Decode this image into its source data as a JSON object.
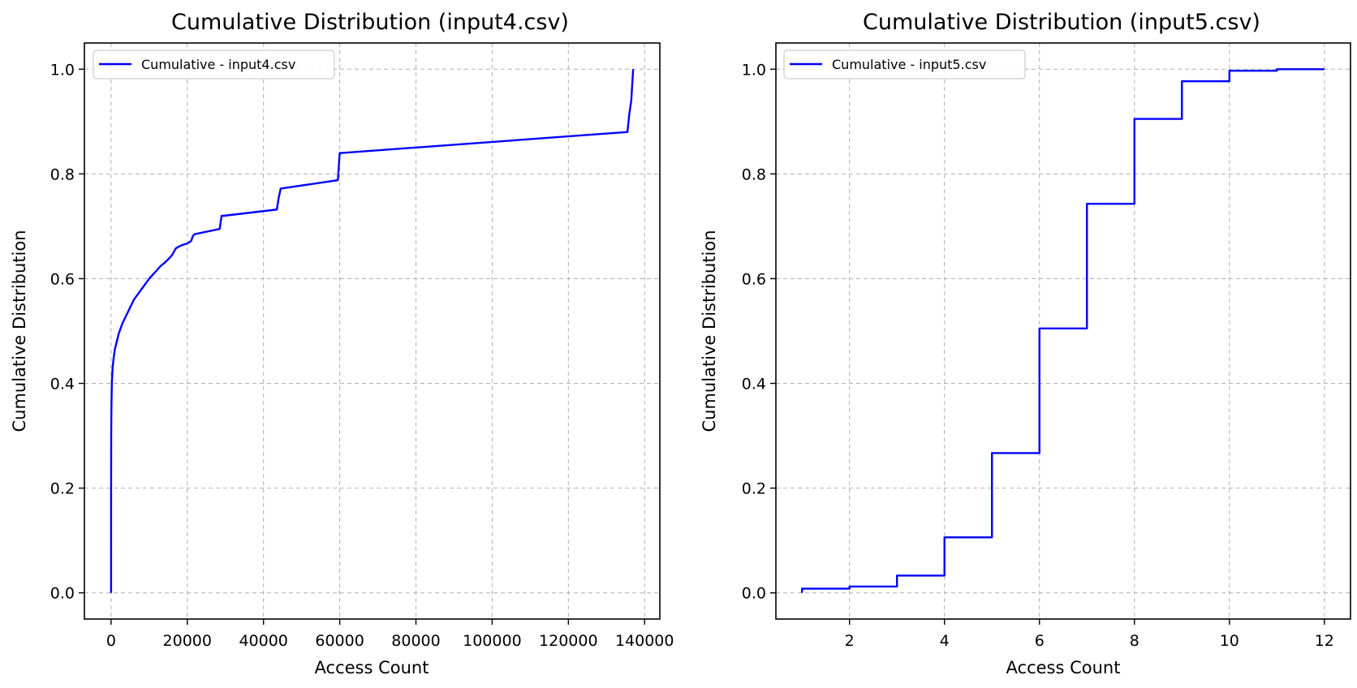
{
  "chart_data": [
    {
      "type": "line",
      "title": "Cumulative Distribution (input4.csv)",
      "xlabel": "Access Count",
      "ylabel": "Cumulative Distribution",
      "xlim": [
        -7000,
        144000
      ],
      "ylim": [
        -0.05,
        1.05
      ],
      "xticks": [
        0,
        20000,
        40000,
        60000,
        80000,
        100000,
        120000,
        140000
      ],
      "yticks": [
        0.0,
        0.2,
        0.4,
        0.6,
        0.8,
        1.0
      ],
      "xtick_labels": [
        "0",
        "20000",
        "40000",
        "60000",
        "80000",
        "100000",
        "120000",
        "140000"
      ],
      "ytick_labels": [
        "0.0",
        "0.2",
        "0.4",
        "0.6",
        "0.8",
        "1.0"
      ],
      "grid": true,
      "legend_position": "top-left",
      "line_color": "#0000ff",
      "series": [
        {
          "name": "Cumulative - input4.csv",
          "x": [
            1,
            10,
            30,
            100,
            200,
            400,
            700,
            1000,
            1500,
            2000,
            3000,
            4000,
            5000,
            6000,
            7000,
            8000,
            9000,
            10000,
            11000,
            12000,
            13000,
            14000,
            15000,
            16000,
            17000,
            18000,
            19000,
            20000,
            21000,
            21500,
            22000,
            28500,
            29000,
            29500,
            43500,
            44000,
            44500,
            59500,
            60000,
            60500,
            135500,
            136000,
            136500,
            137000
          ],
          "y": [
            0.0,
            0.2,
            0.3,
            0.36,
            0.4,
            0.43,
            0.45,
            0.465,
            0.48,
            0.495,
            0.515,
            0.53,
            0.545,
            0.56,
            0.57,
            0.58,
            0.59,
            0.6,
            0.608,
            0.616,
            0.624,
            0.63,
            0.637,
            0.645,
            0.658,
            0.662,
            0.665,
            0.667,
            0.672,
            0.682,
            0.685,
            0.695,
            0.72,
            0.72,
            0.732,
            0.755,
            0.772,
            0.788,
            0.84,
            0.84,
            0.88,
            0.915,
            0.94,
            1.0
          ]
        }
      ]
    },
    {
      "type": "line",
      "title": "Cumulative Distribution (input5.csv)",
      "xlabel": "Access Count",
      "ylabel": "Cumulative Distribution",
      "xlim": [
        0.45,
        12.55
      ],
      "ylim": [
        -0.05,
        1.05
      ],
      "xticks": [
        2,
        4,
        6,
        8,
        10,
        12
      ],
      "yticks": [
        0.0,
        0.2,
        0.4,
        0.6,
        0.8,
        1.0
      ],
      "xtick_labels": [
        "2",
        "4",
        "6",
        "8",
        "10",
        "12"
      ],
      "ytick_labels": [
        "0.0",
        "0.2",
        "0.4",
        "0.6",
        "0.8",
        "1.0"
      ],
      "grid": true,
      "legend_position": "top-left",
      "line_color": "#0000ff",
      "series": [
        {
          "name": "Cumulative - input5.csv",
          "x": [
            1,
            1,
            2,
            2,
            3,
            3,
            4,
            4,
            5,
            5,
            6,
            6,
            7,
            7,
            8,
            8,
            9,
            9,
            10,
            10,
            11,
            11,
            12
          ],
          "y": [
            0.0,
            0.008,
            0.008,
            0.012,
            0.012,
            0.033,
            0.033,
            0.106,
            0.106,
            0.267,
            0.267,
            0.505,
            0.505,
            0.743,
            0.743,
            0.905,
            0.905,
            0.977,
            0.977,
            0.997,
            0.997,
            1.0,
            1.0
          ]
        }
      ]
    }
  ]
}
